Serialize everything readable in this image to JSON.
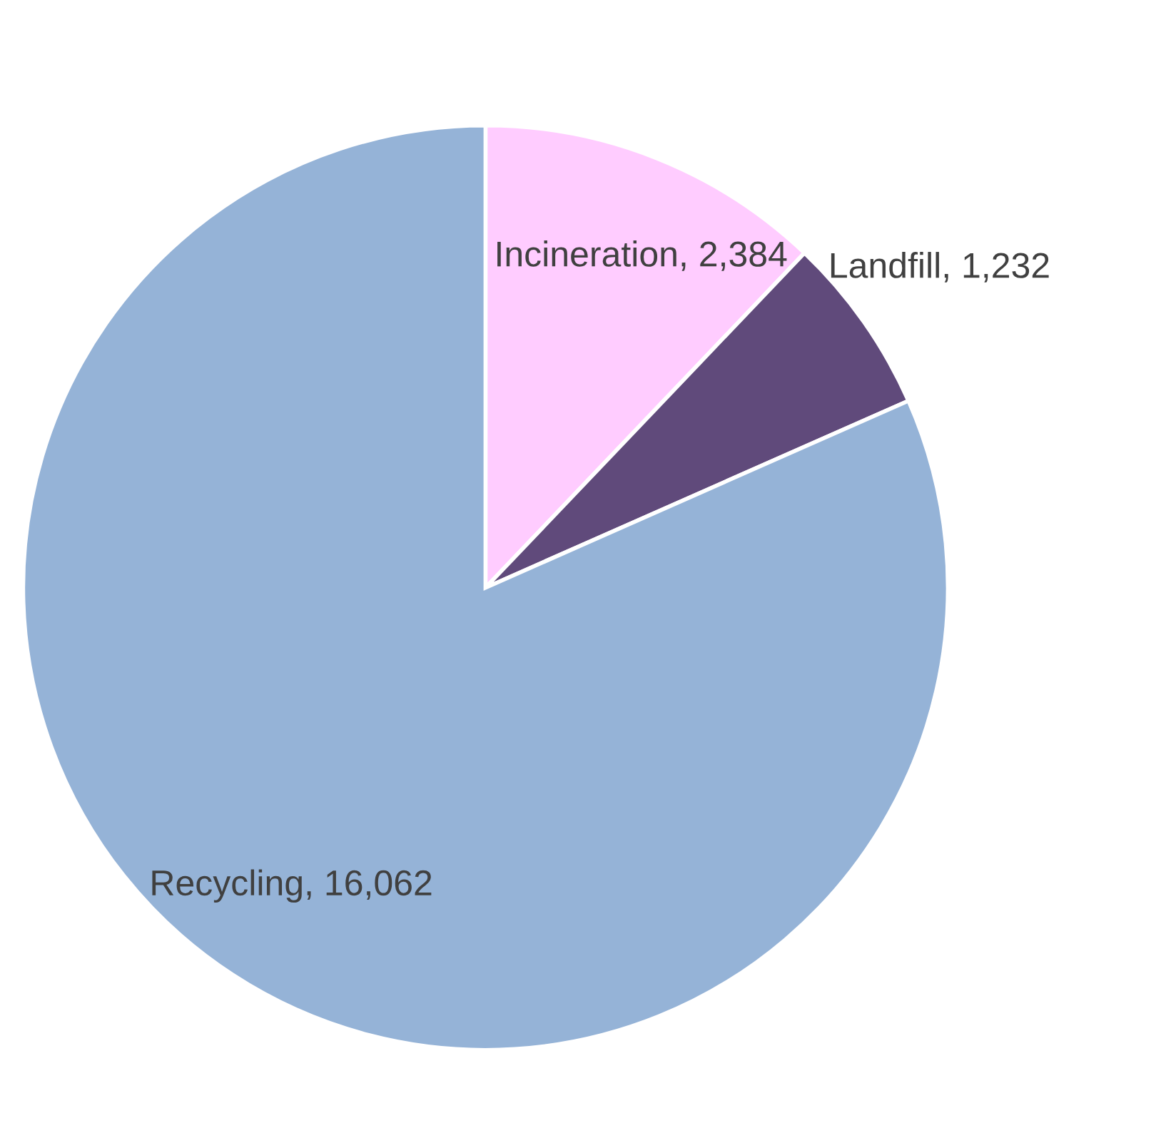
{
  "chart_data": {
    "type": "pie",
    "categories": [
      "Incineration",
      "Landfill",
      "Recycling"
    ],
    "value_labels": [
      "2,384",
      "1,232",
      "16,062"
    ],
    "values": [
      2384,
      1232,
      16062
    ],
    "colors": [
      "#ffccff",
      "#604a7b",
      "#95b3d7"
    ],
    "data_labels": true
  }
}
